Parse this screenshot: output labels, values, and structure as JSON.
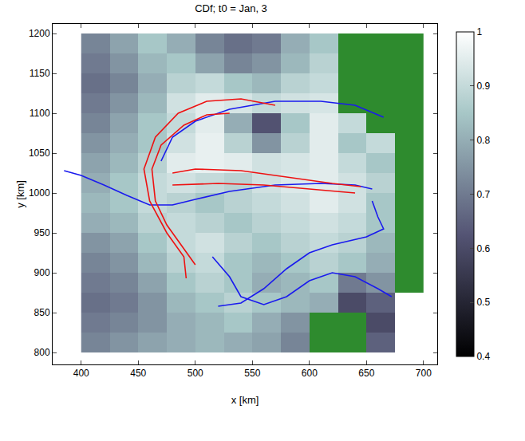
{
  "chart_data": {
    "type": "heatmap",
    "title": "CDf; t0 = Jan, 3",
    "x_label": "x [km]",
    "y_label": "y [km]",
    "xlim": [
      375,
      712
    ],
    "ylim": [
      785,
      1212
    ],
    "xticks": [
      400,
      450,
      500,
      550,
      600,
      650,
      700
    ],
    "yticks": [
      800,
      850,
      900,
      950,
      1000,
      1050,
      1100,
      1150,
      1200
    ],
    "colorbar_range": [
      0.4,
      1
    ],
    "colorbar_ticks": [
      0.4,
      0.5,
      0.6,
      0.7,
      0.8,
      0.9,
      1
    ],
    "cells": {
      "x": [
        412.5,
        437.5,
        462.5,
        487.5,
        512.5,
        537.5,
        562.5,
        587.5,
        612.5,
        637.5,
        662.5,
        687.5
      ],
      "y": [
        1187.5,
        1162.5,
        1137.5,
        1112.5,
        1087.5,
        1062.5,
        1037.5,
        1012.5,
        987.5,
        962.5,
        937.5,
        912.5,
        887.5,
        862.5,
        837.5,
        812.5
      ],
      "z": [
        [
          0.72,
          0.78,
          0.85,
          0.8,
          0.72,
          0.68,
          0.7,
          0.8,
          0.85,
          null,
          null,
          null
        ],
        [
          0.7,
          0.75,
          0.82,
          0.85,
          0.78,
          0.72,
          0.75,
          0.82,
          0.88,
          null,
          null,
          null
        ],
        [
          0.68,
          0.72,
          0.8,
          0.88,
          0.9,
          0.85,
          0.82,
          0.88,
          0.9,
          null,
          null,
          null
        ],
        [
          0.7,
          0.75,
          0.82,
          0.92,
          0.95,
          0.93,
          0.9,
          0.92,
          0.93,
          null,
          null,
          null
        ],
        [
          0.72,
          0.78,
          0.85,
          0.9,
          0.95,
          0.8,
          0.62,
          0.85,
          0.95,
          0.9,
          null,
          null
        ],
        [
          0.75,
          0.8,
          0.85,
          0.92,
          0.96,
          0.88,
          0.75,
          0.88,
          0.95,
          0.85,
          0.9,
          null
        ],
        [
          0.78,
          0.82,
          0.88,
          0.95,
          0.96,
          0.95,
          0.92,
          0.93,
          0.95,
          0.9,
          0.85,
          null
        ],
        [
          0.8,
          0.85,
          0.9,
          0.92,
          0.9,
          0.88,
          0.92,
          0.94,
          0.95,
          0.92,
          0.88,
          null
        ],
        [
          0.82,
          0.85,
          0.9,
          0.88,
          0.85,
          0.88,
          0.9,
          0.92,
          0.95,
          0.92,
          0.85,
          null
        ],
        [
          0.8,
          0.82,
          0.88,
          0.9,
          0.88,
          0.85,
          0.88,
          0.9,
          0.92,
          0.9,
          0.85,
          null
        ],
        [
          0.75,
          0.78,
          0.85,
          0.9,
          0.92,
          0.88,
          0.85,
          0.88,
          0.9,
          0.88,
          0.82,
          null
        ],
        [
          0.72,
          0.75,
          0.82,
          0.88,
          0.9,
          0.85,
          0.82,
          0.85,
          0.88,
          0.85,
          0.8,
          null
        ],
        [
          0.7,
          0.72,
          0.78,
          0.85,
          0.88,
          0.85,
          0.8,
          0.82,
          0.85,
          0.7,
          0.75,
          null
        ],
        [
          0.68,
          0.7,
          0.75,
          0.82,
          0.85,
          0.88,
          0.85,
          0.82,
          0.8,
          0.6,
          0.65,
          null
        ],
        [
          0.7,
          0.72,
          0.75,
          0.8,
          0.82,
          0.85,
          0.8,
          0.75,
          null,
          null,
          0.6,
          null
        ],
        [
          0.72,
          0.75,
          0.78,
          0.8,
          0.82,
          0.8,
          0.78,
          0.72,
          null,
          null,
          0.65,
          null
        ]
      ]
    },
    "land": {
      "color": "#2e8b2e",
      "z": [
        [
          null,
          null,
          null,
          null,
          null,
          null,
          null,
          null,
          null,
          1,
          1,
          1
        ],
        [
          null,
          null,
          null,
          null,
          null,
          null,
          null,
          null,
          null,
          1,
          1,
          1
        ],
        [
          null,
          null,
          null,
          null,
          null,
          null,
          null,
          null,
          null,
          1,
          1,
          1
        ],
        [
          null,
          null,
          null,
          null,
          null,
          null,
          null,
          null,
          null,
          1,
          1,
          1
        ],
        [
          null,
          null,
          null,
          null,
          null,
          null,
          null,
          null,
          null,
          null,
          1,
          1
        ],
        [
          null,
          null,
          null,
          null,
          null,
          null,
          null,
          null,
          null,
          null,
          null,
          1
        ],
        [
          null,
          null,
          null,
          null,
          null,
          null,
          null,
          null,
          null,
          null,
          null,
          1
        ],
        [
          null,
          null,
          null,
          null,
          null,
          null,
          null,
          null,
          null,
          null,
          null,
          1
        ],
        [
          null,
          null,
          null,
          null,
          null,
          null,
          null,
          null,
          null,
          null,
          null,
          1
        ],
        [
          null,
          null,
          null,
          null,
          null,
          null,
          null,
          null,
          null,
          null,
          null,
          1
        ],
        [
          null,
          null,
          null,
          null,
          null,
          null,
          null,
          null,
          null,
          null,
          null,
          1
        ],
        [
          null,
          null,
          null,
          null,
          null,
          null,
          null,
          null,
          null,
          null,
          null,
          1
        ],
        [
          null,
          null,
          null,
          null,
          null,
          null,
          null,
          null,
          null,
          null,
          null,
          1
        ],
        [
          null,
          null,
          null,
          null,
          null,
          null,
          null,
          null,
          null,
          null,
          null,
          null
        ],
        [
          null,
          null,
          null,
          null,
          null,
          null,
          null,
          null,
          1,
          1,
          null,
          null
        ],
        [
          null,
          null,
          null,
          null,
          null,
          null,
          null,
          null,
          1,
          1,
          null,
          null
        ]
      ]
    },
    "curves": [
      {
        "color": "#1a1aee",
        "x": [
          385,
          400,
          420,
          440,
          460,
          480,
          500,
          530,
          570,
          610,
          640,
          655
        ],
        "y": [
          1028,
          1022,
          1010,
          997,
          985,
          985,
          992,
          1002,
          1010,
          1012,
          1010,
          1005
        ]
      },
      {
        "color": "#1a1aee",
        "x": [
          470,
          480,
          500,
          530,
          570,
          610,
          640,
          665
        ],
        "y": [
          1040,
          1070,
          1090,
          1105,
          1115,
          1115,
          1110,
          1095
        ]
      },
      {
        "color": "#1a1aee",
        "x": [
          655,
          660,
          665,
          650,
          620,
          600,
          580,
          560,
          540,
          520
        ],
        "y": [
          990,
          970,
          955,
          945,
          935,
          925,
          905,
          880,
          862,
          858
        ]
      },
      {
        "color": "#1a1aee",
        "x": [
          515,
          530,
          540,
          560,
          580,
          600,
          620,
          640,
          660,
          672
        ],
        "y": [
          920,
          895,
          870,
          860,
          870,
          890,
          900,
          895,
          880,
          870
        ]
      },
      {
        "color": "#ee1111",
        "x": [
          530,
          510,
          490,
          470,
          462,
          465,
          475,
          490,
          500
        ],
        "y": [
          1100,
          1098,
          1085,
          1060,
          1030,
          990,
          960,
          930,
          910
        ]
      },
      {
        "color": "#ee1111",
        "x": [
          570,
          540,
          510,
          485,
          465,
          455,
          460,
          475,
          490,
          492
        ],
        "y": [
          1110,
          1118,
          1115,
          1100,
          1070,
          1030,
          990,
          950,
          920,
          893
        ]
      },
      {
        "color": "#ee1111",
        "x": [
          480,
          500,
          540,
          580,
          620,
          645
        ],
        "y": [
          1025,
          1030,
          1028,
          1020,
          1012,
          1008
        ]
      },
      {
        "color": "#ee1111",
        "x": [
          480,
          520,
          560,
          600,
          640
        ],
        "y": [
          1010,
          1012,
          1010,
          1005,
          1000
        ]
      }
    ]
  }
}
